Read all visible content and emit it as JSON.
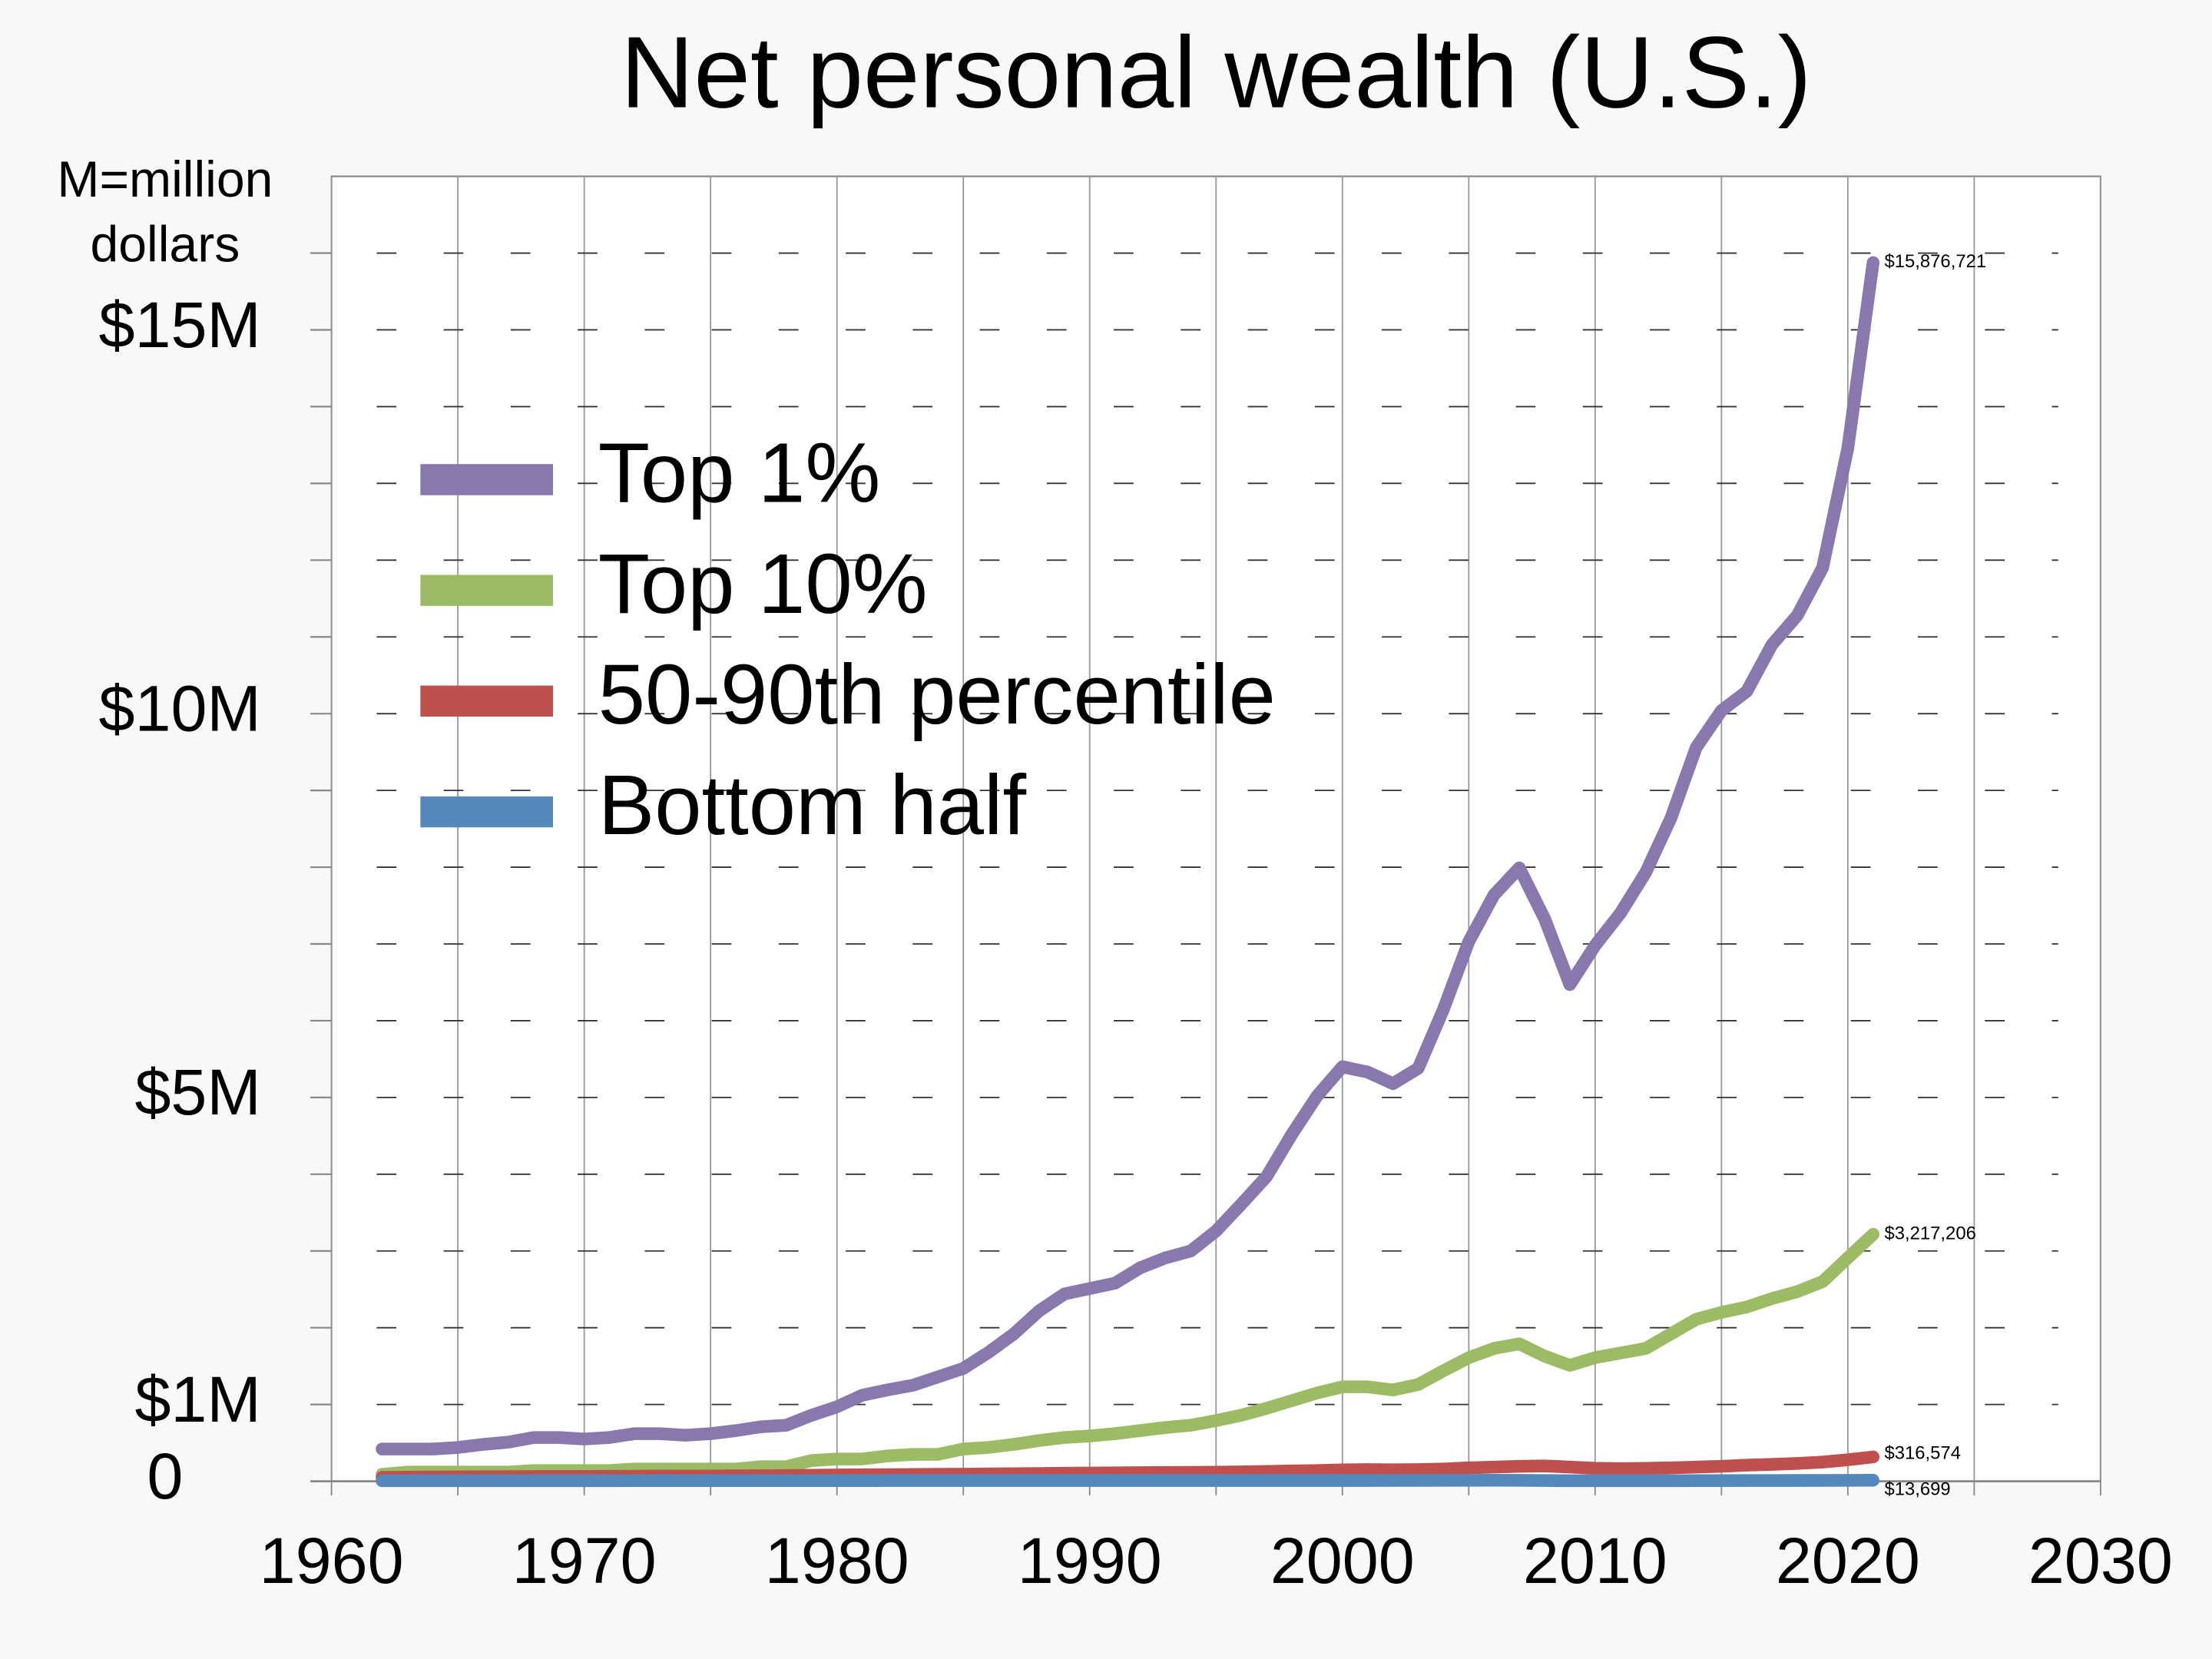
{
  "chart_data": {
    "type": "line",
    "title": "Net personal wealth (U.S.)",
    "y_label": [
      "M=million",
      "dollars"
    ],
    "x": [
      1962,
      1963,
      1964,
      1965,
      1966,
      1967,
      1968,
      1969,
      1970,
      1971,
      1972,
      1973,
      1974,
      1975,
      1976,
      1977,
      1978,
      1979,
      1980,
      1981,
      1982,
      1983,
      1984,
      1985,
      1986,
      1987,
      1988,
      1989,
      1990,
      1991,
      1992,
      1993,
      1994,
      1995,
      1996,
      1997,
      1998,
      1999,
      2000,
      2001,
      2002,
      2003,
      2004,
      2005,
      2006,
      2007,
      2008,
      2009,
      2010,
      2011,
      2012,
      2013,
      2014,
      2015,
      2016,
      2017,
      2018,
      2019,
      2020,
      2021
    ],
    "series": [
      {
        "name": "Top 1%",
        "color": "#8878ae",
        "end_label": "$15,876,721",
        "values": [
          420000,
          420000,
          420000,
          440000,
          480000,
          510000,
          570000,
          570000,
          550000,
          570000,
          620000,
          620000,
          600000,
          620000,
          660000,
          710000,
          730000,
          860000,
          970000,
          1120000,
          1190000,
          1250000,
          1360000,
          1470000,
          1680000,
          1920000,
          2220000,
          2440000,
          2510000,
          2580000,
          2780000,
          2910000,
          3000000,
          3260000,
          3610000,
          3970000,
          4520000,
          5020000,
          5400000,
          5330000,
          5180000,
          5380000,
          6150000,
          7030000,
          7640000,
          7990000,
          7330000,
          6470000,
          6980000,
          7400000,
          7930000,
          8640000,
          9560000,
          10040000,
          10290000,
          10900000,
          11280000,
          11900000,
          13460000,
          15876721
        ]
      },
      {
        "name": "Top 10%",
        "color": "#9bbb64",
        "end_label": "$3,217,206",
        "values": [
          90000,
          120000,
          120000,
          120000,
          120000,
          120000,
          140000,
          140000,
          140000,
          140000,
          160000,
          160000,
          160000,
          160000,
          160000,
          190000,
          190000,
          270000,
          290000,
          290000,
          330000,
          350000,
          350000,
          420000,
          440000,
          480000,
          530000,
          570000,
          590000,
          620000,
          660000,
          700000,
          730000,
          790000,
          860000,
          950000,
          1050000,
          1150000,
          1230000,
          1230000,
          1190000,
          1260000,
          1440000,
          1610000,
          1730000,
          1790000,
          1630000,
          1510000,
          1610000,
          1670000,
          1730000,
          1920000,
          2110000,
          2200000,
          2270000,
          2380000,
          2470000,
          2600000,
          2910000,
          3217206
        ]
      },
      {
        "name": "50-90th percentile",
        "color": "#c0504d",
        "end_label": "$316,574",
        "values": [
          50000,
          53000,
          55000,
          57000,
          59000,
          60000,
          62000,
          63000,
          63000,
          64000,
          66000,
          68000,
          67000,
          68000,
          70000,
          72000,
          74000,
          78000,
          82000,
          84000,
          86000,
          88000,
          90000,
          92000,
          95000,
          98000,
          101000,
          104000,
          107000,
          110000,
          112000,
          114000,
          116000,
          118000,
          122000,
          128000,
          134000,
          140000,
          148000,
          152000,
          150000,
          152000,
          160000,
          175000,
          185000,
          195000,
          200000,
          185000,
          170000,
          165000,
          168000,
          175000,
          185000,
          195000,
          210000,
          220000,
          232000,
          250000,
          280000,
          316574
        ]
      },
      {
        "name": "Bottom half",
        "color": "#5589bb",
        "end_label": "$13,699",
        "values": [
          7000,
          7000,
          7000,
          7000,
          7000,
          7000,
          7000,
          7000,
          7000,
          7000,
          8000,
          8000,
          8000,
          8000,
          8000,
          8000,
          8000,
          8000,
          8000,
          8000,
          9000,
          9000,
          9000,
          9000,
          9000,
          9000,
          9000,
          9000,
          9000,
          9000,
          10000,
          10000,
          10000,
          10000,
          10000,
          10000,
          10000,
          10000,
          10000,
          10000,
          11000,
          11000,
          12000,
          12000,
          13000,
          12000,
          9000,
          7000,
          7000,
          7000,
          7000,
          7000,
          8000,
          8000,
          9000,
          9500,
          10000,
          11000,
          12000,
          13699
        ]
      }
    ],
    "xlim": [
      1960,
      2030
    ],
    "xticks": [
      1960,
      1970,
      1980,
      1990,
      2000,
      2010,
      2020,
      2030
    ],
    "minor_xticks": [
      1965,
      1975,
      1985,
      1995,
      2005,
      2015,
      2025
    ],
    "ylim": [
      0,
      17000000
    ],
    "yticks": [
      0,
      {
        "value": 1000000,
        "label": "$1M"
      },
      {
        "value": 5000000,
        "label": "$5M"
      },
      {
        "value": 10000000,
        "label": "$10M"
      },
      {
        "value": 15000000,
        "label": "$15M"
      }
    ],
    "minor_yticks": [
      2000000,
      3000000,
      4000000,
      6000000,
      7000000,
      8000000,
      9000000,
      11000000,
      12000000,
      13000000,
      14000000,
      16000000
    ],
    "grid": true,
    "legend": "upper left"
  }
}
